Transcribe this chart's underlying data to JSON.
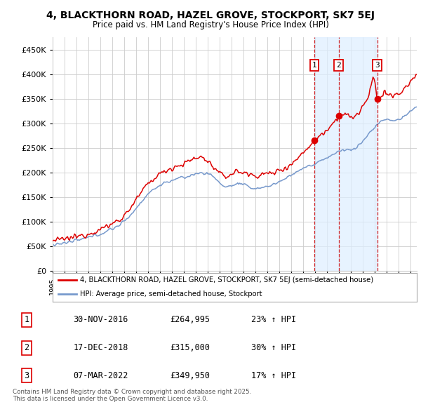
{
  "title": "4, BLACKTHORN ROAD, HAZEL GROVE, STOCKPORT, SK7 5EJ",
  "subtitle": "Price paid vs. HM Land Registry's House Price Index (HPI)",
  "legend_label_red": "4, BLACKTHORN ROAD, HAZEL GROVE, STOCKPORT, SK7 5EJ (semi-detached house)",
  "legend_label_blue": "HPI: Average price, semi-detached house, Stockport",
  "footer": "Contains HM Land Registry data © Crown copyright and database right 2025.\nThis data is licensed under the Open Government Licence v3.0.",
  "transactions": [
    {
      "num": 1,
      "date": "30-NOV-2016",
      "price": "£264,995",
      "change": "23% ↑ HPI",
      "year": 2016.92
    },
    {
      "num": 2,
      "date": "17-DEC-2018",
      "price": "£315,000",
      "change": "30% ↑ HPI",
      "year": 2018.96
    },
    {
      "num": 3,
      "date": "07-MAR-2022",
      "price": "£349,950",
      "change": "17% ↑ HPI",
      "year": 2022.18
    }
  ],
  "ylim": [
    0,
    475000
  ],
  "xlim_start": 1995,
  "xlim_end": 2025.5,
  "red_color": "#dd0000",
  "blue_color": "#7799cc",
  "dashed_color": "#cc0000",
  "shade_color": "#ddeeff",
  "background_color": "#ffffff",
  "grid_color": "#cccccc"
}
